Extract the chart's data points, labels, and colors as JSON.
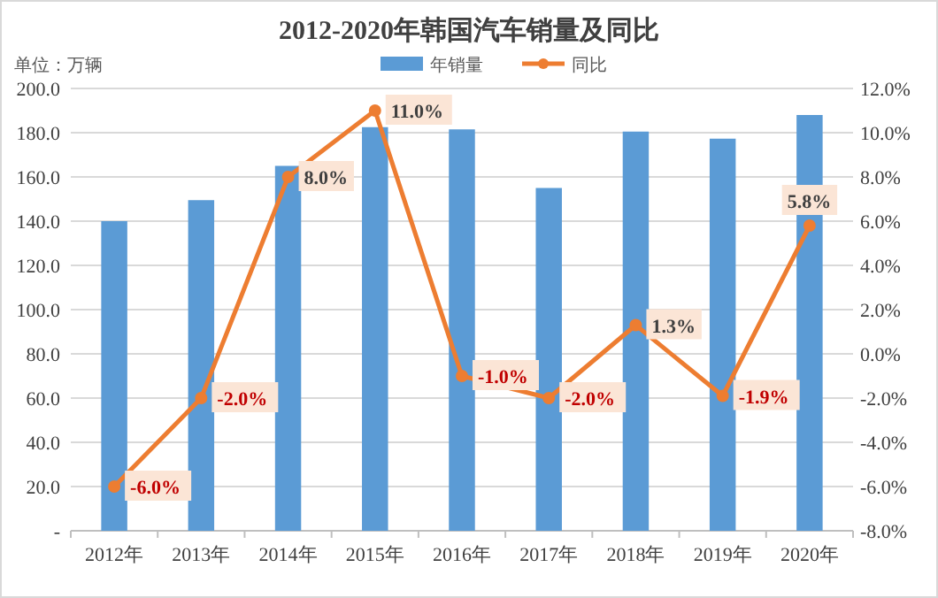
{
  "chart_data": {
    "type": "bar",
    "title": "2012-2020年韩国汽车销量及同比",
    "annotations": [
      "单位：万辆"
    ],
    "categories": [
      "2012年",
      "2013年",
      "2014年",
      "2015年",
      "2016年",
      "2017年",
      "2018年",
      "2019年",
      "2020年"
    ],
    "series": [
      {
        "name": "年销量",
        "color": "#5b9bd5",
        "values": [
          140,
          149.5,
          165,
          182.5,
          181.5,
          155,
          180.5,
          177.3,
          188
        ]
      },
      {
        "name": "同比",
        "type": "line",
        "axis": "y2",
        "color": "#ed7d31",
        "marker": "circle",
        "values": [
          -6.0,
          -2.0,
          8.0,
          11.0,
          -1.0,
          -2.0,
          1.3,
          -1.9,
          5.8
        ],
        "value_labels": [
          "-6.0%",
          "-2.0%",
          "8.0%",
          "11.0%",
          "-1.0%",
          "-2.0%",
          "1.3%",
          "-1.9%",
          "5.8%"
        ]
      }
    ],
    "ylim": [
      0,
      200
    ],
    "yticks": [
      {
        "value": 0,
        "label": "-"
      },
      {
        "value": 20,
        "label": "20.0"
      },
      {
        "value": 40,
        "label": "40.0"
      },
      {
        "value": 60,
        "label": "60.0"
      },
      {
        "value": 80,
        "label": "80.0"
      },
      {
        "value": 100,
        "label": "100.0"
      },
      {
        "value": 120,
        "label": "120.0"
      },
      {
        "value": 140,
        "label": "140.0"
      },
      {
        "value": 160,
        "label": "160.0"
      },
      {
        "value": 180,
        "label": "180.0"
      },
      {
        "value": 200,
        "label": "200.0"
      }
    ],
    "y2lim": [
      -8,
      12
    ],
    "y2ticks": [
      {
        "value": -8,
        "label": "-8.0%"
      },
      {
        "value": -6,
        "label": "-6.0%"
      },
      {
        "value": -4,
        "label": "-4.0%"
      },
      {
        "value": -2,
        "label": "-2.0%"
      },
      {
        "value": 0,
        "label": "0.0%"
      },
      {
        "value": 2,
        "label": "2.0%"
      },
      {
        "value": 4,
        "label": "4.0%"
      },
      {
        "value": 6,
        "label": "6.0%"
      },
      {
        "value": 8,
        "label": "8.0%"
      },
      {
        "value": 10,
        "label": "10.0%"
      },
      {
        "value": 12,
        "label": "12.0%"
      }
    ],
    "grid": "y",
    "legend": "top"
  }
}
